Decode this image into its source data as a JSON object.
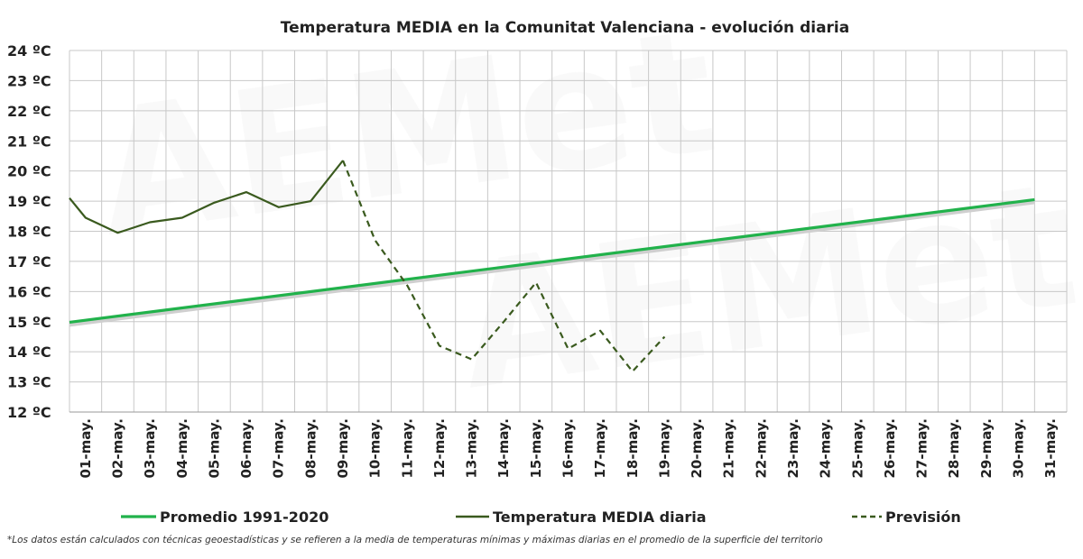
{
  "chart_data": {
    "type": "line",
    "title": "Temperatura MEDIA en la Comunitat Valenciana - evolución diaria",
    "categories": [
      "01-may.",
      "02-may.",
      "03-may.",
      "04-may.",
      "05-may.",
      "06-may.",
      "07-may.",
      "08-may.",
      "09-may.",
      "10-may.",
      "11-may.",
      "12-may.",
      "13-may.",
      "14-may.",
      "15-may.",
      "16-may.",
      "17-may.",
      "18-may.",
      "19-may.",
      "20-may.",
      "21-may.",
      "22-may.",
      "23-may.",
      "24-may.",
      "25-may.",
      "26-may.",
      "27-may.",
      "28-may.",
      "29-may.",
      "30-may.",
      "31-may."
    ],
    "y_ticks": [
      "12 ºC",
      "13 ºC",
      "14 ºC",
      "15 ºC",
      "16 ºC",
      "17 ºC",
      "18 ºC",
      "19 ºC",
      "20 ºC",
      "21 ºC",
      "22 ºC",
      "23 ºC",
      "24 ºC"
    ],
    "ylim": [
      12,
      24
    ],
    "grid": true,
    "legend_position": "bottom",
    "series": [
      {
        "name": "Promedio 1991-2020",
        "color": "#21b24b",
        "style": "solid",
        "x": [
          0,
          30
        ],
        "values": [
          14.98,
          19.05
        ]
      },
      {
        "name": "Temperatura MEDIA diaria",
        "color": "#3a5a1e",
        "style": "solid",
        "x": [
          0,
          0.5,
          1.5,
          2.5,
          3.5,
          4.5,
          5.5,
          6.5,
          7.5,
          8.5
        ],
        "values": [
          19.1,
          18.45,
          17.95,
          18.3,
          18.45,
          18.95,
          19.3,
          18.8,
          19.0,
          20.35
        ]
      },
      {
        "name": "Previsión",
        "color": "#3a5a1e",
        "style": "dashed",
        "x": [
          8.5,
          9.5,
          10.5,
          11.5,
          12.5,
          13.5,
          14.5,
          15.5,
          16.5,
          17.5,
          18.5
        ],
        "values": [
          20.35,
          17.7,
          16.2,
          14.2,
          13.75,
          15.0,
          16.3,
          14.1,
          14.7,
          13.35,
          14.5
        ]
      }
    ]
  },
  "footnote": "*Los datos están calculados con técnicas geoestadísticas y se refieren a la media de temperaturas mínimas y máximas diarias en el promedio de la superficie del territorio"
}
